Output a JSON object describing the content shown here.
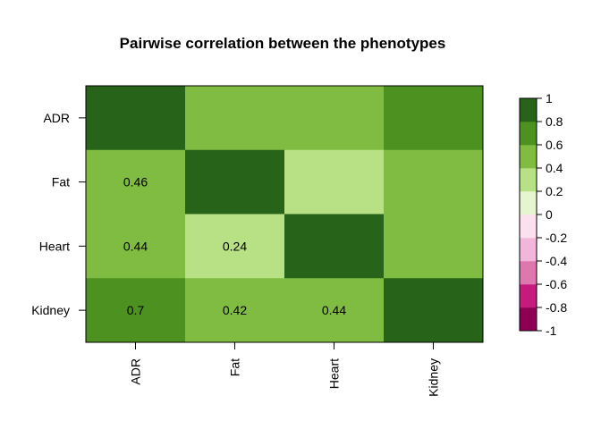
{
  "chart_data": {
    "type": "heatmap",
    "title": "Pairwise correlation between the phenotypes",
    "rows": [
      "ADR",
      "Fat",
      "Heart",
      "Kidney"
    ],
    "cols": [
      "ADR",
      "Fat",
      "Heart",
      "Kidney"
    ],
    "values": [
      [
        1,
        0.46,
        0.44,
        0.7
      ],
      [
        0.46,
        1,
        0.24,
        0.42
      ],
      [
        0.44,
        0.24,
        1,
        0.44
      ],
      [
        0.7,
        0.42,
        0.44,
        1
      ]
    ],
    "cell_labels": [
      [
        "",
        "",
        "",
        ""
      ],
      [
        "0.46",
        "",
        "",
        ""
      ],
      [
        "0.44",
        "0.24",
        "",
        ""
      ],
      [
        "0.7",
        "0.42",
        "0.44",
        ""
      ]
    ],
    "legend": {
      "breaks": [
        -1,
        -0.8,
        -0.6,
        -0.4,
        -0.2,
        0,
        0.2,
        0.4,
        0.6,
        0.8,
        1
      ],
      "labels": [
        "-1",
        "-0.8",
        "-0.6",
        "-0.4",
        "-0.2",
        "0",
        "0.2",
        "0.4",
        "0.6",
        "0.8",
        "1"
      ],
      "colors": [
        "#8e0152",
        "#c51b7d",
        "#de77ae",
        "#f1b6da",
        "#fde0ef",
        "#e6f5d0",
        "#b8e186",
        "#7fbc41",
        "#4d9221",
        "#276419"
      ]
    },
    "legend_placement": "right",
    "grid": false
  }
}
